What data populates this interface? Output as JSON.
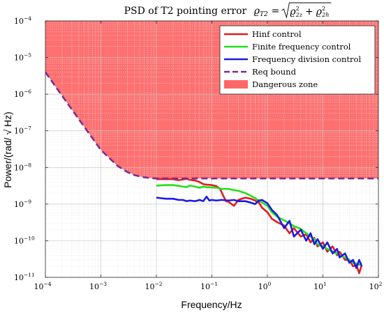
{
  "chart_data": {
    "type": "line",
    "title": "PSD of T2 pointing error ϱT2 = √(ϱ2z² + ϱ2h²)",
    "title_parts": {
      "prefix": "PSD of T2 pointing error",
      "symbol": "ϱ",
      "symbol_sub": "T2",
      "equals": "=",
      "term1": "ϱ",
      "term1_sup": "2",
      "term1_sub": "2z",
      "plus": "+",
      "term2": "ϱ",
      "term2_sup": "2",
      "term2_sub": "2h"
    },
    "xlabel": "Frequency/Hz",
    "ylabel": "Power/(rad/ √ Hz)",
    "x_scale": "log",
    "y_scale": "log",
    "xlim": [
      0.0001,
      100
    ],
    "ylim": [
      1e-11,
      0.0001
    ],
    "x_tick_labels": [
      {
        "base": "10",
        "exp": "−4",
        "value": 0.0001
      },
      {
        "base": "10",
        "exp": "−3",
        "value": 0.001
      },
      {
        "base": "10",
        "exp": "−2",
        "value": 0.01
      },
      {
        "base": "10",
        "exp": "−1",
        "value": 0.1
      },
      {
        "base": "10",
        "exp": "0",
        "value": 1
      },
      {
        "base": "10",
        "exp": "1",
        "value": 10
      },
      {
        "base": "10",
        "exp": "2",
        "value": 100
      }
    ],
    "y_tick_labels": [
      {
        "base": "10",
        "exp": "−11",
        "value": 1e-11
      },
      {
        "base": "10",
        "exp": "−10",
        "value": 1e-10
      },
      {
        "base": "10",
        "exp": "−9",
        "value": 1e-09
      },
      {
        "base": "10",
        "exp": "−8",
        "value": 1e-08
      },
      {
        "base": "10",
        "exp": "−7",
        "value": 1e-07
      },
      {
        "base": "10",
        "exp": "−6",
        "value": 1e-06
      },
      {
        "base": "10",
        "exp": "−5",
        "value": 1e-05
      },
      {
        "base": "10",
        "exp": "−4",
        "value": 0.0001
      }
    ],
    "grid": true,
    "legend_position": "top-right",
    "series": [
      {
        "name": "Hinf control",
        "color": "#e41a1c",
        "style": "solid",
        "x": [
          0.01,
          0.012,
          0.015,
          0.02,
          0.025,
          0.03,
          0.035,
          0.04,
          0.05,
          0.06,
          0.07,
          0.08,
          0.1,
          0.12,
          0.14,
          0.16,
          0.18,
          0.2,
          0.25,
          0.3,
          0.35,
          0.4,
          0.5,
          0.6,
          0.7,
          0.8,
          1,
          1.2,
          1.5,
          2,
          2.5,
          3,
          4,
          5,
          6,
          7,
          8,
          10,
          12,
          15,
          18,
          20,
          25,
          30,
          35,
          40,
          45,
          50
        ],
        "y": [
          4.8e-09,
          4.8e-09,
          4.8e-09,
          4.8e-09,
          4.5e-09,
          4.7e-09,
          4.9e-09,
          4.6e-09,
          4.4e-09,
          4e-09,
          3.5e-09,
          3.4e-09,
          3.3e-09,
          3.1e-09,
          2.6e-09,
          1.7e-09,
          1.2e-09,
          1.15e-09,
          9e-10,
          1.3e-09,
          1.4e-09,
          1.5e-09,
          1.4e-09,
          1.25e-09,
          1.1e-09,
          8e-10,
          6e-10,
          4e-10,
          3.2e-10,
          2.6e-10,
          1.6e-10,
          2.2e-10,
          1.3e-10,
          1.5e-10,
          9e-11,
          1.2e-10,
          7e-11,
          9e-11,
          5e-11,
          7e-11,
          4e-11,
          5e-11,
          3e-11,
          3e-11,
          2e-11,
          2.2e-11,
          1.3e-11,
          2.2e-11
        ]
      },
      {
        "name": "Finite frequency control",
        "color": "#22e01a",
        "style": "solid",
        "x": [
          0.01,
          0.012,
          0.015,
          0.02,
          0.025,
          0.03,
          0.035,
          0.04,
          0.05,
          0.06,
          0.07,
          0.08,
          0.1,
          0.12,
          0.15,
          0.2,
          0.25,
          0.3,
          0.4,
          0.5,
          0.6,
          0.7,
          0.8,
          1,
          1.2,
          1.5,
          2,
          2.5,
          3,
          4,
          5,
          6,
          7,
          8,
          10,
          12,
          15,
          18,
          20,
          25,
          30,
          35,
          40,
          45,
          50
        ],
        "y": [
          3.2e-09,
          3.25e-09,
          3.3e-09,
          3.3e-09,
          3.15e-09,
          3e-09,
          2.9e-09,
          3.2e-09,
          3e-09,
          2.8e-09,
          3e-09,
          2.9e-09,
          2.85e-09,
          2.8e-09,
          2.6e-09,
          2.6e-09,
          2.4e-09,
          2.3e-09,
          2e-09,
          1.7e-09,
          1.45e-09,
          1.25e-09,
          1.1e-09,
          9e-10,
          6e-10,
          4.5e-10,
          3.6e-10,
          3e-10,
          2.5e-10,
          2.1e-10,
          1.6e-10,
          1.3e-10,
          1.1e-10,
          8e-11,
          7e-11,
          6e-11,
          5e-11,
          4.4e-11,
          4e-11,
          3.5e-11,
          3e-11,
          2.5e-11,
          2.4e-11,
          2.2e-11,
          2.5e-11
        ]
      },
      {
        "name": "Frequency division control",
        "color": "#1a1ae6",
        "style": "solid",
        "x": [
          0.01,
          0.012,
          0.015,
          0.02,
          0.025,
          0.03,
          0.035,
          0.04,
          0.05,
          0.06,
          0.07,
          0.08,
          0.09,
          0.1,
          0.12,
          0.15,
          0.2,
          0.25,
          0.3,
          0.4,
          0.5,
          0.6,
          0.7,
          0.8,
          1,
          1.2,
          1.5,
          2,
          2.5,
          3,
          4,
          5,
          6,
          7,
          8,
          10,
          12,
          15,
          18,
          20,
          25,
          30,
          35,
          40,
          45,
          50
        ],
        "y": [
          1.5e-09,
          1.45e-09,
          1.4e-09,
          1.4e-09,
          1.3e-09,
          1.3e-09,
          1.2e-09,
          1.25e-09,
          1.2e-09,
          1.3e-09,
          1.2e-09,
          1.6e-09,
          1.25e-09,
          1.3e-09,
          1.25e-09,
          1.3e-09,
          1.25e-09,
          1.3e-09,
          1.2e-09,
          1.2e-09,
          1.1e-09,
          1e-09,
          1.25e-09,
          1.3e-09,
          1.05e-09,
          7e-10,
          5e-10,
          2.2e-10,
          3.5e-10,
          1.3e-10,
          2e-10,
          1e-10,
          1.6e-10,
          8e-11,
          1.1e-10,
          6e-11,
          9e-11,
          4.5e-11,
          6e-11,
          3.5e-11,
          4.5e-11,
          2.5e-11,
          3e-11,
          1.8e-11,
          3e-11,
          2e-11
        ]
      },
      {
        "name": "Req bound",
        "color": "#7b2d8e",
        "style": "dashed",
        "x": [
          0.0001,
          0.0002,
          0.0005,
          0.001,
          0.002,
          0.003,
          0.004,
          0.005,
          0.006,
          0.008,
          0.01,
          0.02,
          0.05,
          0.1,
          0.5,
          1,
          10,
          100
        ],
        "y": [
          4e-06,
          9e-07,
          1.3e-07,
          3e-08,
          1.1e-08,
          7.5e-09,
          6.2e-09,
          5.7e-09,
          5.4e-09,
          5.1e-09,
          5e-09,
          5e-09,
          5e-09,
          5e-09,
          5e-09,
          5e-09,
          5e-09,
          5e-09
        ]
      }
    ],
    "dangerous_zone": {
      "name": "Dangerous zone",
      "color": "#ff6868",
      "upper": 0.0001,
      "lower_follows": "Req bound"
    }
  }
}
